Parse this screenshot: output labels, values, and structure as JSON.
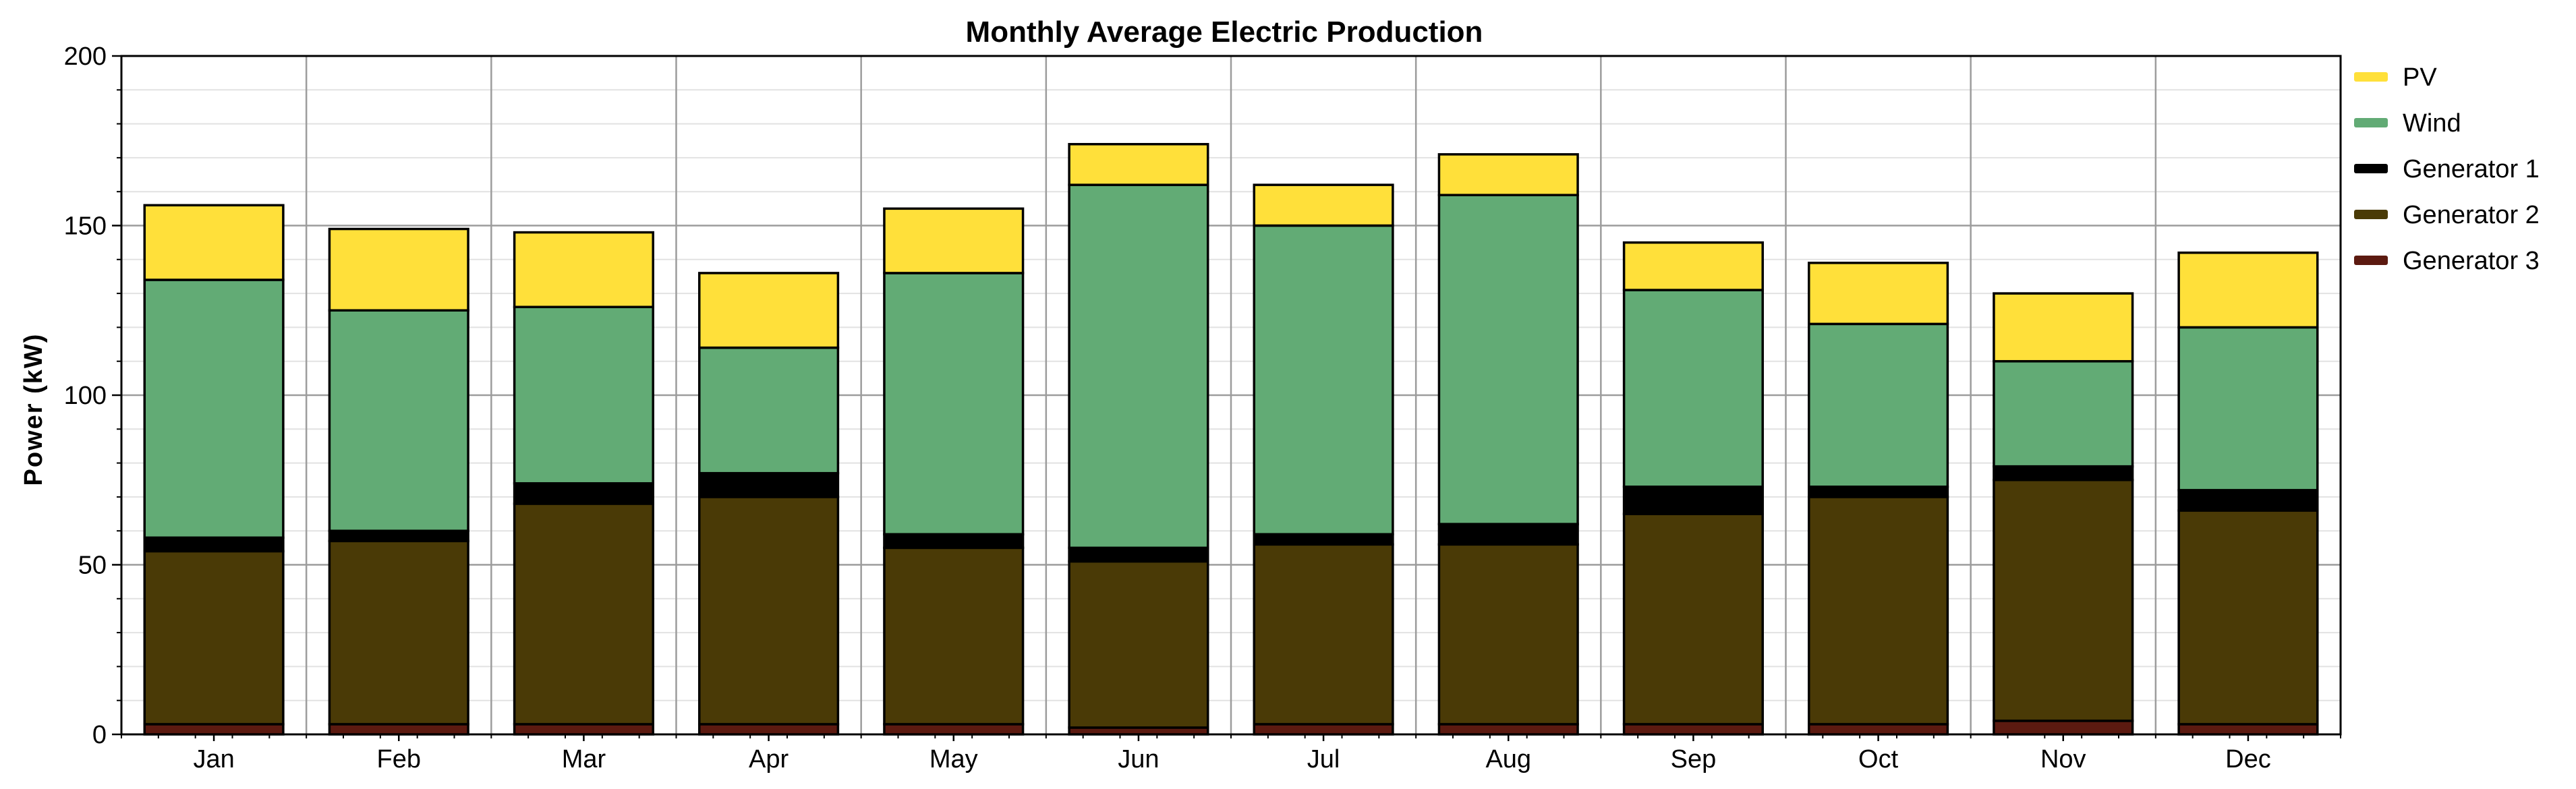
{
  "chart_data": {
    "type": "bar",
    "stacked": true,
    "title": "Monthly Average Electric Production",
    "xlabel": "",
    "ylabel": "Power (kW)",
    "ylim": [
      0,
      200
    ],
    "yticks": [
      0,
      50,
      100,
      150,
      200
    ],
    "grid": true,
    "legend_position": "right",
    "categories": [
      "Jan",
      "Feb",
      "Mar",
      "Apr",
      "May",
      "Jun",
      "Jul",
      "Aug",
      "Sep",
      "Oct",
      "Nov",
      "Dec"
    ],
    "series": [
      {
        "name": "Generator 3",
        "color": "#5c1a10",
        "values": [
          3,
          3,
          3,
          3,
          3,
          2,
          3,
          3,
          3,
          3,
          4,
          3
        ]
      },
      {
        "name": "Generator 2",
        "color": "#4a3a06",
        "values": [
          51,
          54,
          65,
          67,
          52,
          49,
          53,
          53,
          62,
          67,
          71,
          63
        ]
      },
      {
        "name": "Generator 1",
        "color": "#000000",
        "values": [
          4,
          3,
          6,
          7,
          4,
          4,
          3,
          6,
          8,
          3,
          4,
          6
        ]
      },
      {
        "name": "Wind",
        "color": "#62ab75",
        "values": [
          76,
          65,
          52,
          37,
          77,
          107,
          91,
          97,
          58,
          48,
          31,
          48
        ]
      },
      {
        "name": "PV",
        "color": "#ffe03a",
        "values": [
          22,
          24,
          22,
          22,
          19,
          12,
          12,
          12,
          14,
          18,
          20,
          22
        ]
      }
    ],
    "legend_order": [
      "PV",
      "Wind",
      "Generator 1",
      "Generator 2",
      "Generator 3"
    ]
  }
}
